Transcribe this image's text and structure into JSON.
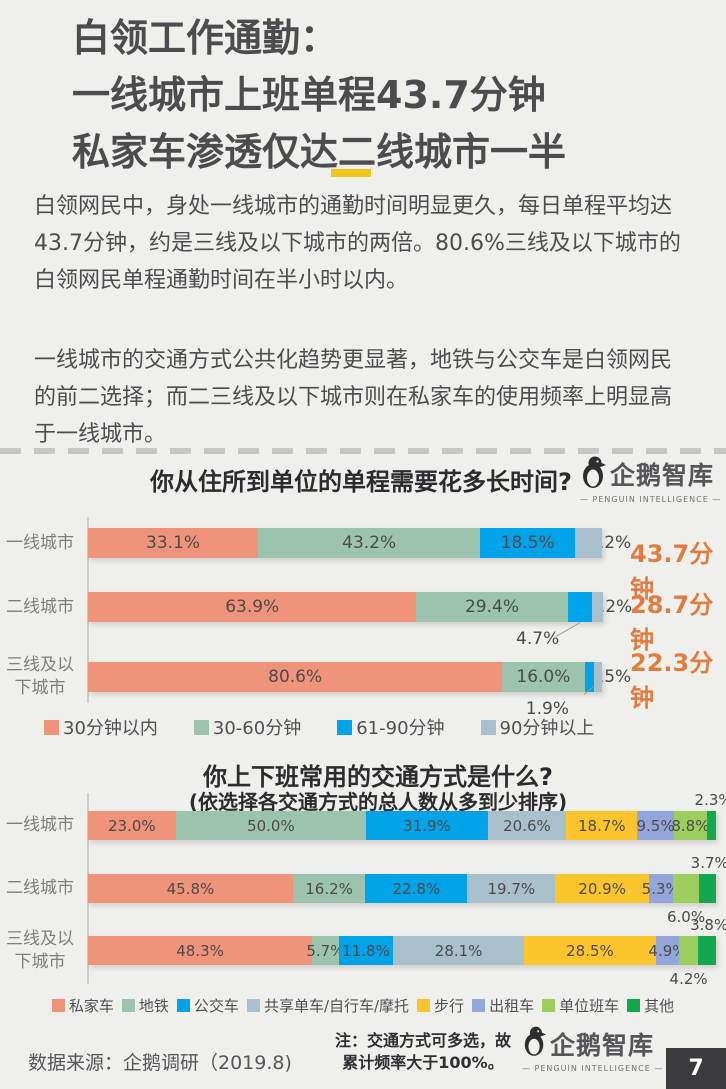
{
  "header": {
    "title": "白领工作通勤：\n一线城市上班单程43.7分钟\n私家车渗透仅达二线城市一半",
    "paragraph1": "白领网民中，身处一线城市的通勤时间明显更久，每日单程平均达\n43.7分钟，约是三线及以下城市的两倍。80.6%三线及以下城市的\n白领网民单程通勤时间在半小时以内。",
    "paragraph2": "一线城市的交通方式公共化趋势更显著，地铁与公交车是白领网民\n的前二选择；而二三线及以下城市则在私家车的使用频率上明显高\n于一线城市。"
  },
  "brand": {
    "name": "企鹅智库",
    "subtitle": "— PENGUIN INTELLIGENCE —"
  },
  "colors": {
    "page_bg": "#efefec",
    "text": "#4c4d4f",
    "accent_yellow": "#f2c51d",
    "annotation_orange": "#e07c40",
    "badge_bg": "#3b3b3d"
  },
  "chart_data": [
    {
      "type": "bar",
      "stacked": true,
      "orientation": "horizontal",
      "normalized_per_row": false,
      "title": "你从住所到单位的单程需要花多长时间?",
      "legend": [
        "30分钟以内",
        "30-60分钟",
        "61-90分钟",
        "90分钟以上"
      ],
      "colors": [
        "#ef937b",
        "#9cc3ae",
        "#00a2e8",
        "#a8bfcc"
      ],
      "categories": [
        "一线城市",
        "二线城市",
        "三线及以下城市"
      ],
      "rows": [
        {
          "category": "一线城市",
          "values": [
            33.1,
            43.2,
            18.5,
            5.2
          ],
          "label_pos": [
            "in",
            "in",
            "in",
            "right"
          ],
          "annotation": "43.7分钟"
        },
        {
          "category": "二线城市",
          "values": [
            63.9,
            29.4,
            4.7,
            2.2
          ],
          "label_pos": [
            "in",
            "in",
            "below",
            "right"
          ],
          "annotation": "28.7分钟"
        },
        {
          "category": "三线及以下城市",
          "values": [
            80.6,
            16.0,
            1.9,
            1.5
          ],
          "label_pos": [
            "in",
            "in",
            "below",
            "right"
          ],
          "annotation": "22.3分钟"
        }
      ],
      "annotation_color": "#e07c40"
    },
    {
      "type": "bar",
      "stacked": true,
      "orientation": "horizontal",
      "normalized_per_row": true,
      "title": "你上下班常用的交通方式是什么?",
      "subtitle": "(依选择各交通方式的总人数从多到少排序)",
      "legend": [
        "私家车",
        "地铁",
        "公交车",
        "共享单车/自行车/摩托",
        "步行",
        "出租车",
        "单位班车",
        "其他"
      ],
      "colors": [
        "#ef937b",
        "#9cc3ae",
        "#00a2e8",
        "#a8bfcc",
        "#fcc42d",
        "#93a6d9",
        "#9bce5f",
        "#13a750"
      ],
      "categories": [
        "一线城市",
        "二线城市",
        "三线及以下城市"
      ],
      "rows": [
        {
          "category": "一线城市",
          "values": [
            23.0,
            50.0,
            31.9,
            20.6,
            18.7,
            9.5,
            8.8,
            2.3
          ],
          "label_pos": [
            "in",
            "in",
            "in",
            "in",
            "in",
            "in",
            "in",
            "above"
          ]
        },
        {
          "category": "二线城市",
          "values": [
            45.8,
            16.2,
            22.8,
            19.7,
            20.9,
            5.3,
            6.0,
            3.7
          ],
          "label_pos": [
            "in",
            "in",
            "in",
            "in",
            "in",
            "in",
            "below",
            "above"
          ]
        },
        {
          "category": "三线及以下城市",
          "values": [
            48.3,
            5.7,
            11.8,
            28.1,
            28.5,
            4.9,
            4.2,
            3.8
          ],
          "label_pos": [
            "in",
            "in",
            "in",
            "in",
            "in",
            "in",
            "below",
            "above"
          ]
        }
      ]
    }
  ],
  "footer": {
    "source": "数据来源：企鹅调研（2019.8)",
    "note": "注：交通方式可多选，故\n累计频率大于100%。",
    "page_number": "7"
  }
}
